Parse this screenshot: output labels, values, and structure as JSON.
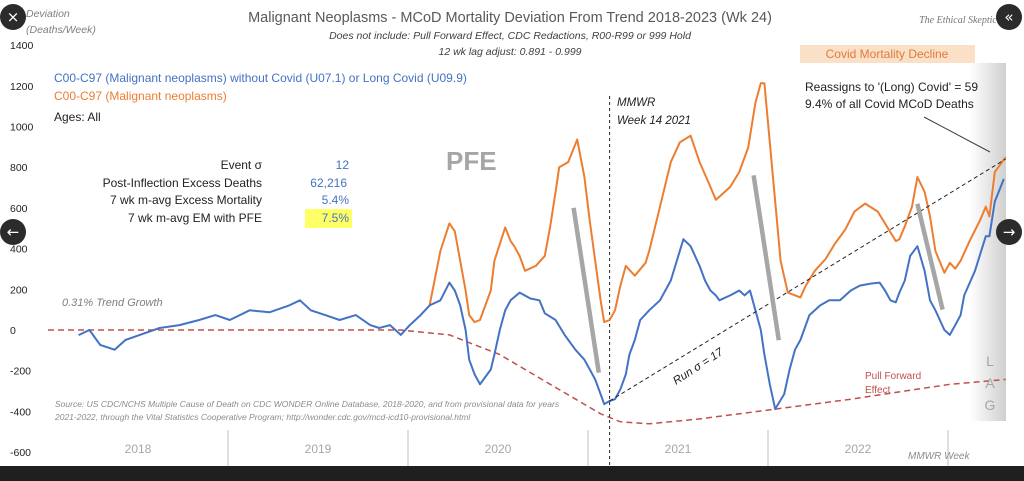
{
  "controls": {
    "close_icon": "×",
    "collapse_icon": "«",
    "prev_icon": "←",
    "next_icon": "→"
  },
  "watermark": "The Ethical Skeptic",
  "chart_data": {
    "type": "line",
    "title": "Malignant Neoplasms - MCoD Mortality Deviation  From Trend  2018-2023 (Wk 24)",
    "subtitle_lines": [
      "Does not include: Pull Forward Effect,  CDC Redactions, R00-R99 or 999 Hold",
      "12 wk lag adjust: 0.891 - 0.999"
    ],
    "ylabel_lines": [
      "Deviation",
      "(Deaths/Week)"
    ],
    "xlabel": "MMWR Week",
    "ylim": [
      -600,
      1400
    ],
    "yticks": [
      "1400",
      "1200",
      "1000",
      "800",
      "600",
      "400",
      "200",
      "0",
      "-200",
      "-400",
      "-600"
    ],
    "ytick_values": [
      1400,
      1200,
      1000,
      800,
      600,
      400,
      200,
      0,
      -200,
      -400,
      -600
    ],
    "xlim": [
      2018,
      2023.35
    ],
    "year_labels": [
      "2018",
      "2019",
      "2020",
      "2021",
      "2022"
    ],
    "grid": false,
    "legend_lines": [
      "C00-C97 (Malignant neoplasms) without Covid (U07.1) or Long Covid (U09.9)",
      "C00-C97 (Malignant neoplasms)",
      "Ages: All"
    ],
    "colors": {
      "blue": "#4472c4",
      "orange": "#ed7d31",
      "pull_forward": "#c0504d",
      "highlight": "#ffff66",
      "decline_box": "#fbe0c8"
    },
    "series": [
      {
        "name": "C00-C97 (Malignant neoplasms) without Covid (U07.1) or Long Covid (U09.9)",
        "color": "#4472c4",
        "points": [
          [
            2018.17,
            -25
          ],
          [
            2018.23,
            0
          ],
          [
            2018.29,
            -73
          ],
          [
            2018.37,
            -97
          ],
          [
            2018.43,
            -49
          ],
          [
            2018.51,
            -24
          ],
          [
            2018.62,
            10
          ],
          [
            2018.73,
            24
          ],
          [
            2018.84,
            49
          ],
          [
            2018.93,
            73
          ],
          [
            2019.01,
            49
          ],
          [
            2019.12,
            97
          ],
          [
            2019.23,
            87
          ],
          [
            2019.34,
            121
          ],
          [
            2019.4,
            146
          ],
          [
            2019.46,
            97
          ],
          [
            2019.54,
            73
          ],
          [
            2019.62,
            49
          ],
          [
            2019.71,
            73
          ],
          [
            2019.79,
            24
          ],
          [
            2019.84,
            10
          ],
          [
            2019.9,
            24
          ],
          [
            2019.96,
            -24
          ],
          [
            2020.01,
            24
          ],
          [
            2020.07,
            73
          ],
          [
            2020.12,
            121
          ],
          [
            2020.18,
            146
          ],
          [
            2020.23,
            233
          ],
          [
            2020.26,
            194
          ],
          [
            2020.29,
            121
          ],
          [
            2020.32,
            0
          ],
          [
            2020.34,
            -146
          ],
          [
            2020.37,
            -218
          ],
          [
            2020.4,
            -267
          ],
          [
            2020.46,
            -194
          ],
          [
            2020.48,
            -121
          ],
          [
            2020.51,
            0
          ],
          [
            2020.54,
            97
          ],
          [
            2020.57,
            146
          ],
          [
            2020.62,
            184
          ],
          [
            2020.68,
            155
          ],
          [
            2020.73,
            146
          ],
          [
            2020.76,
            82
          ],
          [
            2020.82,
            49
          ],
          [
            2020.87,
            -24
          ],
          [
            2020.93,
            -97
          ],
          [
            2020.98,
            -146
          ],
          [
            2021.01,
            -194
          ],
          [
            2021.04,
            -243
          ],
          [
            2021.07,
            -315
          ],
          [
            2021.09,
            -364
          ],
          [
            2021.12,
            -349
          ],
          [
            2021.15,
            -340
          ],
          [
            2021.18,
            -291
          ],
          [
            2021.21,
            -218
          ],
          [
            2021.23,
            -121
          ],
          [
            2021.26,
            -49
          ],
          [
            2021.29,
            49
          ],
          [
            2021.34,
            97
          ],
          [
            2021.4,
            146
          ],
          [
            2021.46,
            243
          ],
          [
            2021.53,
            446
          ],
          [
            2021.57,
            412
          ],
          [
            2021.62,
            315
          ],
          [
            2021.65,
            243
          ],
          [
            2021.68,
            194
          ],
          [
            2021.71,
            170
          ],
          [
            2021.73,
            146
          ],
          [
            2021.79,
            170
          ],
          [
            2021.84,
            194
          ],
          [
            2021.87,
            170
          ],
          [
            2021.9,
            194
          ],
          [
            2021.93,
            97
          ],
          [
            2021.96,
            0
          ],
          [
            2021.98,
            -121
          ],
          [
            2022.01,
            -267
          ],
          [
            2022.04,
            -388
          ],
          [
            2022.09,
            -315
          ],
          [
            2022.12,
            -194
          ],
          [
            2022.15,
            -97
          ],
          [
            2022.18,
            -49
          ],
          [
            2022.21,
            24
          ],
          [
            2022.23,
            73
          ],
          [
            2022.29,
            121
          ],
          [
            2022.34,
            146
          ],
          [
            2022.4,
            146
          ],
          [
            2022.46,
            194
          ],
          [
            2022.51,
            218
          ],
          [
            2022.57,
            228
          ],
          [
            2022.62,
            233
          ],
          [
            2022.65,
            194
          ],
          [
            2022.68,
            146
          ],
          [
            2022.71,
            136
          ],
          [
            2022.73,
            184
          ],
          [
            2022.76,
            243
          ],
          [
            2022.79,
            364
          ],
          [
            2022.83,
            412
          ],
          [
            2022.87,
            291
          ],
          [
            2022.9,
            146
          ],
          [
            2022.93,
            97
          ],
          [
            2022.98,
            0
          ],
          [
            2023.01,
            -24
          ],
          [
            2023.04,
            24
          ],
          [
            2023.07,
            73
          ],
          [
            2023.09,
            170
          ],
          [
            2023.15,
            291
          ],
          [
            2023.21,
            461
          ],
          [
            2023.23,
            461
          ],
          [
            2023.26,
            631
          ],
          [
            2023.31,
            742
          ]
        ]
      },
      {
        "name": "C00-C97 (Malignant neoplasms)",
        "color": "#ed7d31",
        "points": [
          [
            2020.12,
            121
          ],
          [
            2020.18,
            388
          ],
          [
            2020.23,
            524
          ],
          [
            2020.26,
            485
          ],
          [
            2020.29,
            340
          ],
          [
            2020.32,
            194
          ],
          [
            2020.34,
            73
          ],
          [
            2020.37,
            39
          ],
          [
            2020.4,
            49
          ],
          [
            2020.46,
            194
          ],
          [
            2020.48,
            340
          ],
          [
            2020.54,
            504
          ],
          [
            2020.57,
            437
          ],
          [
            2020.59,
            412
          ],
          [
            2020.62,
            364
          ],
          [
            2020.65,
            291
          ],
          [
            2020.71,
            315
          ],
          [
            2020.76,
            364
          ],
          [
            2020.79,
            509
          ],
          [
            2020.82,
            679
          ],
          [
            2020.84,
            800
          ],
          [
            2020.89,
            825
          ],
          [
            2020.94,
            936
          ],
          [
            2020.98,
            752
          ],
          [
            2021.01,
            534
          ],
          [
            2021.04,
            340
          ],
          [
            2021.07,
            146
          ],
          [
            2021.09,
            39
          ],
          [
            2021.12,
            49
          ],
          [
            2021.15,
            97
          ],
          [
            2021.18,
            218
          ],
          [
            2021.21,
            315
          ],
          [
            2021.26,
            267
          ],
          [
            2021.32,
            330
          ],
          [
            2021.34,
            388
          ],
          [
            2021.4,
            606
          ],
          [
            2021.46,
            825
          ],
          [
            2021.51,
            922
          ],
          [
            2021.57,
            955
          ],
          [
            2021.62,
            825
          ],
          [
            2021.68,
            703
          ],
          [
            2021.71,
            640
          ],
          [
            2021.73,
            655
          ],
          [
            2021.79,
            703
          ],
          [
            2021.84,
            776
          ],
          [
            2021.89,
            897
          ],
          [
            2021.93,
            1116
          ],
          [
            2021.96,
            1213
          ],
          [
            2021.98,
            1213
          ],
          [
            2022.01,
            922
          ],
          [
            2022.04,
            631
          ],
          [
            2022.07,
            340
          ],
          [
            2022.11,
            184
          ],
          [
            2022.18,
            160
          ],
          [
            2022.21,
            218
          ],
          [
            2022.26,
            291
          ],
          [
            2022.32,
            349
          ],
          [
            2022.37,
            422
          ],
          [
            2022.43,
            495
          ],
          [
            2022.48,
            582
          ],
          [
            2022.54,
            621
          ],
          [
            2022.61,
            582
          ],
          [
            2022.67,
            495
          ],
          [
            2022.71,
            437
          ],
          [
            2022.73,
            446
          ],
          [
            2022.76,
            509
          ],
          [
            2022.8,
            606
          ],
          [
            2022.83,
            752
          ],
          [
            2022.87,
            679
          ],
          [
            2022.9,
            558
          ],
          [
            2022.93,
            388
          ],
          [
            2022.98,
            281
          ],
          [
            2023.01,
            330
          ],
          [
            2023.04,
            301
          ],
          [
            2023.07,
            340
          ],
          [
            2023.12,
            437
          ],
          [
            2023.18,
            543
          ],
          [
            2023.21,
            606
          ],
          [
            2023.23,
            558
          ],
          [
            2023.26,
            776
          ],
          [
            2023.32,
            849
          ]
        ]
      }
    ],
    "pull_forward_curve": [
      [
        2018,
        0
      ],
      [
        2019.96,
        0
      ],
      [
        2020.23,
        -24
      ],
      [
        2020.51,
        -121
      ],
      [
        2020.79,
        -267
      ],
      [
        2021.07,
        -412
      ],
      [
        2021.18,
        -451
      ],
      [
        2021.34,
        -461
      ],
      [
        2021.62,
        -437
      ],
      [
        2021.96,
        -398
      ],
      [
        2022.46,
        -340
      ],
      [
        2023.01,
        -267
      ],
      [
        2023.32,
        -243
      ]
    ],
    "run_trend_line": [
      [
        2021.12,
        -349
      ],
      [
        2023.32,
        840
      ]
    ],
    "decline_markers": [
      [
        [
          2020.92,
          600
        ],
        [
          2021.06,
          -210
        ]
      ],
      [
        [
          2021.92,
          760
        ],
        [
          2022.06,
          -50
        ]
      ],
      [
        [
          2022.83,
          620
        ],
        [
          2022.97,
          100
        ]
      ]
    ],
    "inflection_week": 2021.12,
    "annotations": {
      "pfe": "PFE",
      "trend_growth": "0.31% Trend Growth",
      "mmwr_line1": "MMWR",
      "mmwr_line2": "Week 14 2021",
      "run_sigma": "Run σ = 17",
      "reassign_line1": "Reassigns to '(Long) Covid' = 59",
      "reassign_line2": "9.4% of all Covid MCoD Deaths",
      "covid_decline": "Covid Mortality Decline",
      "pull_forward_line1": "Pull Forward",
      "pull_forward_line2": "Effect",
      "lag": [
        "L",
        "A",
        "G"
      ],
      "source_line1": "Source: US CDC/NCHS Multiple Cause of Death on CDC WONDER Online Database, 2018-2020, and from provisional data for years",
      "source_line2": "2021-2022, through the Vital Statistics Cooperative Program; http://wonder.cdc.gov/mcd-icd10-provisional.html"
    },
    "stats": [
      {
        "label": "Event σ",
        "value": "12"
      },
      {
        "label": "Post-Inflection Excess Deaths",
        "value": "62,216"
      },
      {
        "label": "7 wk m-avg Excess Mortality",
        "value": "5.4%"
      },
      {
        "label": "7 wk m-avg EM with PFE",
        "value": "7.5%",
        "highlighted": true
      }
    ]
  }
}
